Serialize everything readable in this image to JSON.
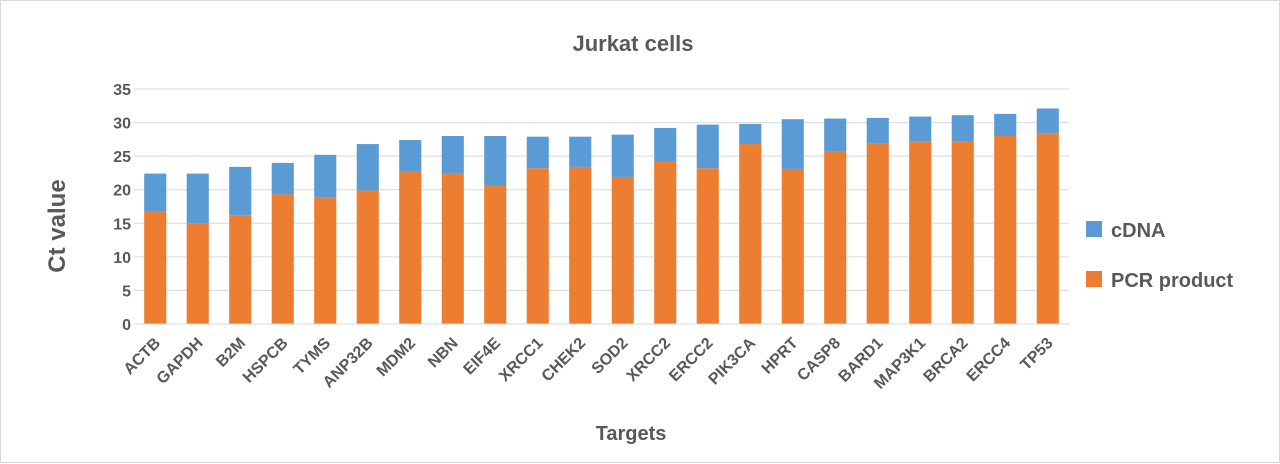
{
  "chart_data": {
    "type": "bar",
    "stacked": true,
    "title": "Jurkat cells",
    "xlabel": "Targets",
    "ylabel": "Ct value",
    "ylim": [
      0,
      35
    ],
    "yticks": [
      0,
      5,
      10,
      15,
      20,
      25,
      30,
      35
    ],
    "grid": true,
    "legend_position": "right",
    "categories": [
      "ACTB",
      "GAPDH",
      "B2M",
      "HSPCB",
      "TYMS",
      "ANP32B",
      "MDM2",
      "NBN",
      "EIF4E",
      "XRCC1",
      "CHEK2",
      "SOD2",
      "XRCC2",
      "ERCC2",
      "PIK3CA",
      "HPRT",
      "CASP8",
      "BARD1",
      "MAP3K1",
      "BRCA2",
      "ERCC4",
      "TP53"
    ],
    "series": [
      {
        "name": "PCR product",
        "color": "#ed7d31",
        "values": [
          16.7,
          15.0,
          16.2,
          19.3,
          18.9,
          19.9,
          22.7,
          22.4,
          20.7,
          23.2,
          23.4,
          21.9,
          24.2,
          23.2,
          26.8,
          23.1,
          25.7,
          26.9,
          27.2,
          27.2,
          28.0,
          28.4
        ]
      },
      {
        "name": "cDNA",
        "color": "#5b9bd5",
        "values": [
          5.7,
          7.4,
          7.2,
          4.7,
          6.3,
          6.9,
          4.7,
          5.6,
          7.3,
          4.7,
          4.5,
          6.3,
          5.0,
          6.5,
          3.0,
          7.4,
          4.9,
          3.8,
          3.7,
          3.9,
          3.3,
          3.7
        ]
      }
    ],
    "legend_order": [
      "cDNA",
      "PCR product"
    ]
  }
}
